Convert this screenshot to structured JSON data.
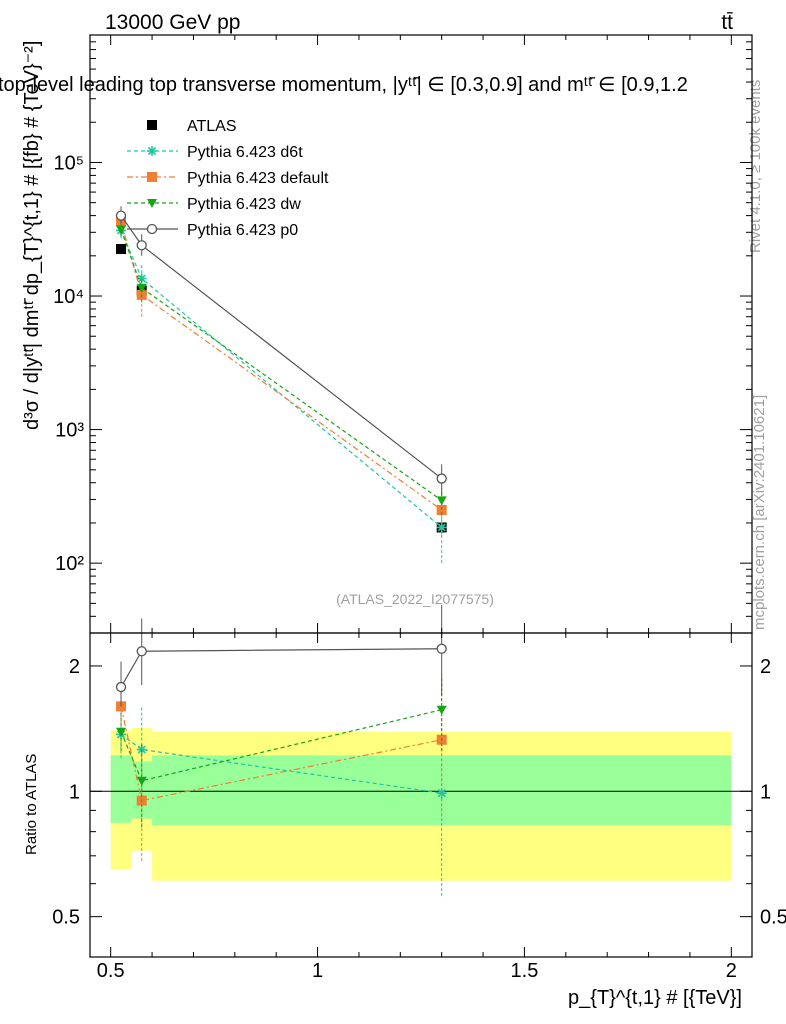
{
  "header": {
    "left": "13000 GeV pp",
    "right": "tt̄",
    "title": "top-level leading top transverse momentum, |yᵗᵗ̄| ∈ [0.3,0.9] and mᵗᵗ̄ ∈ [0.9,1.2"
  },
  "side_labels": {
    "rivet": "Rivet 4.1.0, ≥ 100k events",
    "mcplots": "mcplots.cern.ch [arXiv:2401.10621]"
  },
  "watermark": "(ATLAS_2022_I2077575)",
  "colors": {
    "data": "#000000",
    "d6t": "#1fc7a0",
    "default": "#f07e33",
    "dw": "#17a417",
    "p0": "#555555",
    "band_outer": "#ffff80",
    "band_inner": "#99ff99"
  },
  "chart_data": [
    {
      "type": "scatter",
      "panel": "main",
      "xlabel": "p_{T}^{t,1} # [{TeV}]",
      "ylabel": "d³σ / d|yᵗᵗ̄| dmᵗᵗ̄ dp_{T}^{t,1} # [{fb} # {TeV}⁻²]",
      "yscale": "log",
      "xlim": [
        0.45,
        2.05
      ],
      "ylim": [
        30,
        900000
      ],
      "yticks": [
        {
          "value": 100,
          "label": "10²"
        },
        {
          "value": 1000,
          "label": "10³"
        },
        {
          "value": 10000,
          "label": "10⁴"
        },
        {
          "value": 100000,
          "label": "10⁵"
        }
      ],
      "legend": [
        "ATLAS",
        "Pythia 6.423 d6t",
        "Pythia 6.423 default",
        "Pythia 6.423 dw",
        "Pythia 6.423 p0"
      ],
      "series": [
        {
          "name": "ATLAS",
          "key": "data",
          "marker": "square",
          "x": [
            0.525,
            0.575,
            1.3
          ],
          "y": [
            22500,
            11000,
            185
          ],
          "err": [
            [
              22500,
              22500
            ],
            [
              11000,
              11000
            ],
            [
              185,
              185
            ]
          ]
        },
        {
          "name": "Pythia 6.423 d6t",
          "key": "d6t",
          "marker": "star",
          "x": [
            0.525,
            0.575,
            1.3
          ],
          "y": [
            31000,
            13500,
            185
          ],
          "err": [
            [
              27000,
              35000
            ],
            [
              10500,
              17000
            ],
            [
              100,
              270
            ]
          ]
        },
        {
          "name": "Pythia 6.423 default",
          "key": "default",
          "marker": "square",
          "x": [
            0.525,
            0.575,
            1.3
          ],
          "y": [
            36000,
            10200,
            250
          ],
          "err": [
            [
              32000,
              40000
            ],
            [
              7000,
              13500
            ],
            [
              160,
              330
            ]
          ]
        },
        {
          "name": "Pythia 6.423 dw",
          "key": "dw",
          "marker": "triangle",
          "x": [
            0.525,
            0.575,
            1.3
          ],
          "y": [
            31500,
            11500,
            295
          ],
          "err": [
            [
              28000,
              35000
            ],
            [
              9000,
              14000
            ],
            [
              230,
              360
            ]
          ]
        },
        {
          "name": "Pythia 6.423 p0",
          "key": "p0",
          "marker": "circle",
          "x": [
            0.525,
            0.575,
            1.3
          ],
          "y": [
            40000,
            24000,
            430
          ],
          "err": [
            [
              35000,
              47000
            ],
            [
              20000,
              29000
            ],
            [
              320,
              550
            ]
          ]
        }
      ]
    },
    {
      "type": "scatter",
      "panel": "ratio",
      "ylabel": "Ratio to ATLAS",
      "yscale": "log",
      "xlim": [
        0.45,
        2.05
      ],
      "ylim": [
        0.4,
        2.4
      ],
      "xticks": [
        {
          "value": 0.5,
          "label": "0.5"
        },
        {
          "value": 1,
          "label": "1"
        },
        {
          "value": 1.5,
          "label": "1.5"
        },
        {
          "value": 2,
          "label": "2"
        }
      ],
      "yticks": [
        {
          "value": 0.5,
          "label": "0.5"
        },
        {
          "value": 1,
          "label": "1"
        },
        {
          "value": 2,
          "label": "2"
        }
      ],
      "bands": [
        {
          "x0": 0.5,
          "x1": 0.55,
          "outer": [
            0.65,
            1.4
          ],
          "inner": [
            0.84,
            1.22
          ]
        },
        {
          "x0": 0.55,
          "x1": 0.6,
          "outer": [
            0.72,
            1.42
          ],
          "inner": [
            0.86,
            1.18
          ]
        },
        {
          "x0": 0.6,
          "x1": 2.0,
          "outer": [
            0.61,
            1.39
          ],
          "inner": [
            0.83,
            1.22
          ]
        }
      ],
      "series": [
        {
          "name": "Pythia 6.423 d6t",
          "key": "d6t",
          "marker": "star",
          "x": [
            0.525,
            0.575,
            1.3
          ],
          "y": [
            1.37,
            1.26,
            0.99
          ],
          "err": [
            [
              1.2,
              1.55
            ],
            [
              0.95,
              1.6
            ],
            [
              0.56,
              1.5
            ]
          ]
        },
        {
          "name": "Pythia 6.423 default",
          "key": "default",
          "marker": "square",
          "x": [
            0.525,
            0.575,
            1.3
          ],
          "y": [
            1.6,
            0.95,
            1.33
          ],
          "err": [
            [
              1.45,
              1.78
            ],
            [
              0.68,
              1.25
            ],
            [
              0.87,
              1.85
            ]
          ]
        },
        {
          "name": "Pythia 6.423 dw",
          "key": "dw",
          "marker": "triangle",
          "x": [
            0.525,
            0.575,
            1.3
          ],
          "y": [
            1.39,
            1.06,
            1.57
          ],
          "err": [
            [
              1.25,
              1.55
            ],
            [
              0.82,
              1.3
            ],
            [
              1.25,
              1.9
            ]
          ]
        },
        {
          "name": "Pythia 6.423 p0",
          "key": "p0",
          "marker": "circle",
          "x": [
            0.525,
            0.575,
            1.3
          ],
          "y": [
            1.78,
            2.17,
            2.2
          ],
          "err": [
            [
              1.6,
              2.05
            ],
            [
              1.8,
              2.6
            ],
            [
              1.7,
              2.8
            ]
          ]
        }
      ]
    }
  ]
}
